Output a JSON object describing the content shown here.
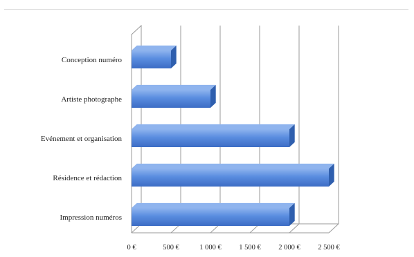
{
  "chart_data": {
    "type": "bar",
    "orientation": "horizontal",
    "style": "3d",
    "categories": [
      "Conception numéro",
      "Artiste photographe",
      "Evénement et organisation",
      "Résidence et rédaction",
      "Impression numéros"
    ],
    "values": [
      500,
      1000,
      2000,
      2500,
      2000
    ],
    "xlim": [
      0,
      2500
    ],
    "x_ticks": [
      "0 €",
      "500 €",
      "1 000 €",
      "1 500 €",
      "2 000 €",
      "2 500 €"
    ],
    "title": "",
    "xlabel": "",
    "ylabel": "",
    "grid": "vertical",
    "legend": "none",
    "colors": {
      "bar_front": "#5a8de0",
      "bar_top": "#8fb4ee",
      "bar_side": "#2f5fae",
      "grid": "#9a9a9a"
    }
  }
}
